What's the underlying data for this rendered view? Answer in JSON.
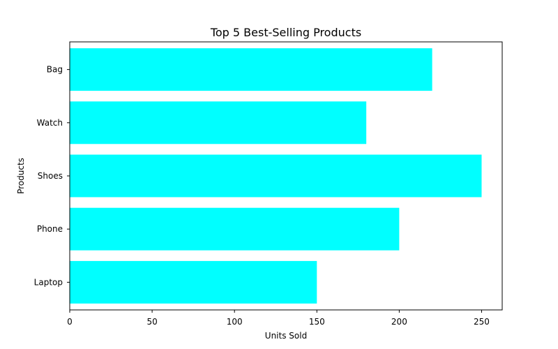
{
  "colors": {
    "bar": "#00ffff",
    "axis": "#000000",
    "background": "#ffffff"
  },
  "chart_data": {
    "type": "bar",
    "orientation": "horizontal",
    "title": "Top 5 Best-Selling Products",
    "xlabel": "Units Sold",
    "ylabel": "Products",
    "categories": [
      "Laptop",
      "Phone",
      "Shoes",
      "Watch",
      "Bag"
    ],
    "values": [
      150,
      200,
      250,
      180,
      220
    ],
    "xlim": [
      0,
      262.5
    ],
    "xticks": [
      0,
      50,
      100,
      150,
      200,
      250
    ],
    "grid": false,
    "legend": "none"
  }
}
